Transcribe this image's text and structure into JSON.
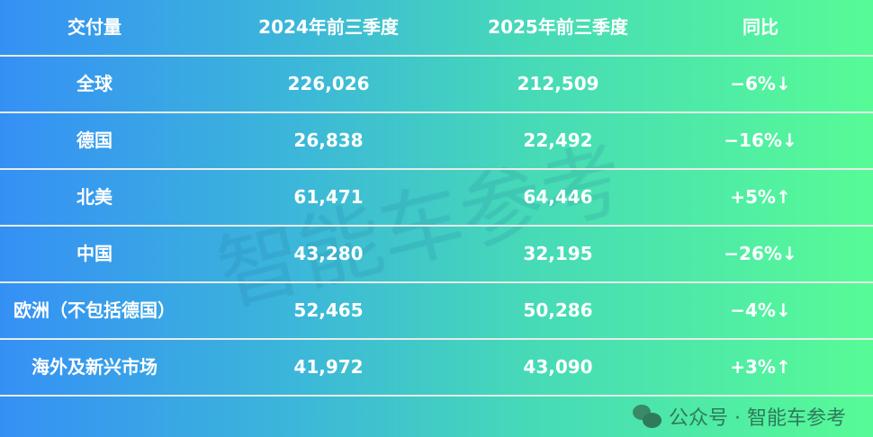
{
  "watermark": "智能车参考",
  "footer": {
    "icon": "wechat-icon",
    "text": "公众号 · 智能车参考"
  },
  "table": {
    "headers": [
      "交付量",
      "2024年前三季度",
      "2025年前三季度",
      "同比"
    ],
    "rows": [
      {
        "region": "全球",
        "y2024": "226,026",
        "y2025": "212,509",
        "yoy": "−6%",
        "arrow": "↓"
      },
      {
        "region": "德国",
        "y2024": "26,838",
        "y2025": "22,492",
        "yoy": "−16%",
        "arrow": "↓"
      },
      {
        "region": "北美",
        "y2024": "61,471",
        "y2025": "64,446",
        "yoy": "+5%",
        "arrow": "↑"
      },
      {
        "region": "中国",
        "y2024": "43,280",
        "y2025": "32,195",
        "yoy": "−26%",
        "arrow": "↓"
      },
      {
        "region": "欧洲（不包括德国）",
        "y2024": "52,465",
        "y2025": "50,286",
        "yoy": "−4%",
        "arrow": "↓"
      },
      {
        "region": "海外及新兴市场",
        "y2024": "41,972",
        "y2025": "43,090",
        "yoy": "+3%",
        "arrow": "↑"
      }
    ]
  }
}
